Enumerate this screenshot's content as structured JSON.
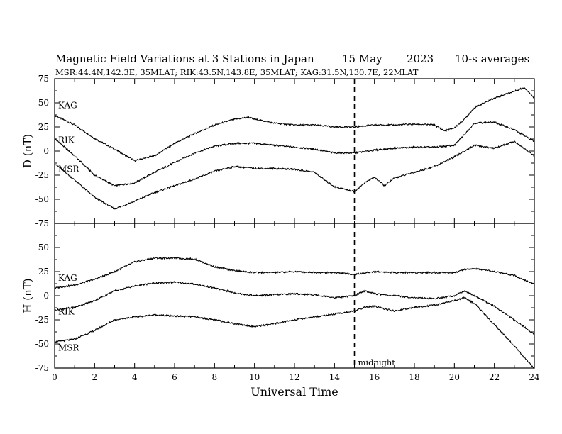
{
  "header": {
    "title": "Magnetic Field Variations at 3 Stations in Japan",
    "date": "15 May",
    "year": "2023",
    "averaging": "10-s averages",
    "stations_line": "MSR:44.4N,142.3E, 35MLAT;  RIK:43.5N,143.8E, 35MLAT;  KAG:31.5N,130.7E, 22MLAT"
  },
  "chart_data": [
    {
      "type": "line",
      "panel": "top",
      "ylabel": "D (nT)",
      "ylim": [
        -75,
        75
      ],
      "yticks": [
        "75",
        "50",
        "25",
        "0",
        "-25",
        "-50",
        "-75"
      ],
      "xlim": [
        0,
        24
      ],
      "grid": false,
      "series": [
        {
          "name": "KAG",
          "x": [
            0,
            1,
            2,
            3,
            4,
            5,
            6,
            7,
            8,
            9,
            9.7,
            10,
            11,
            12,
            13,
            14,
            15,
            16,
            17,
            18,
            19,
            19.5,
            20,
            20.5,
            21,
            22,
            23,
            23.5,
            24
          ],
          "values": [
            37,
            27,
            13,
            2,
            -10,
            -5,
            8,
            18,
            27,
            33,
            35,
            33,
            29,
            27,
            27,
            25,
            25,
            27,
            27,
            28,
            27,
            21,
            24,
            33,
            45,
            55,
            62,
            66,
            55
          ]
        },
        {
          "name": "RIK",
          "x": [
            0,
            1,
            2,
            3,
            4,
            5,
            6,
            7,
            8,
            9,
            10,
            11,
            12,
            13,
            14,
            15,
            16,
            17,
            18,
            19,
            20,
            20.5,
            21,
            22,
            23,
            24
          ],
          "values": [
            13,
            -5,
            -25,
            -36,
            -33,
            -22,
            -12,
            -2,
            5,
            8,
            8,
            6,
            4,
            2,
            -2,
            -2,
            1,
            3,
            4,
            4,
            6,
            17,
            29,
            30,
            22,
            10
          ]
        },
        {
          "name": "MSR",
          "x": [
            0,
            1,
            2,
            3,
            4,
            5,
            6,
            7,
            8,
            9,
            10,
            11,
            12,
            13,
            13.5,
            14,
            15,
            15.5,
            16,
            16.5,
            17,
            18,
            19,
            20,
            20.5,
            21,
            22,
            23,
            24
          ],
          "values": [
            -13,
            -30,
            -48,
            -60,
            -52,
            -43,
            -36,
            -29,
            -21,
            -16,
            -18,
            -18,
            -19,
            -22,
            -30,
            -37,
            -42,
            -33,
            -27,
            -36,
            -28,
            -22,
            -16,
            -6,
            0,
            6,
            3,
            10,
            -5
          ]
        }
      ],
      "annotations": [
        {
          "text": "midnight",
          "x": 15
        }
      ]
    },
    {
      "type": "line",
      "panel": "bottom",
      "ylabel": "H (nT)",
      "ylim": [
        -75,
        75
      ],
      "yticks": [
        "75",
        "50",
        "25",
        "0",
        "-25",
        "-50",
        "-75"
      ],
      "xlim": [
        0,
        24
      ],
      "xticks": [
        "0",
        "2",
        "4",
        "6",
        "8",
        "10",
        "12",
        "14",
        "16",
        "18",
        "20",
        "22",
        "24"
      ],
      "xlabel": "Universal Time",
      "grid": false,
      "series": [
        {
          "name": "KAG",
          "x": [
            0,
            1,
            2,
            3,
            4,
            5,
            6,
            7,
            8,
            9,
            10,
            11,
            12,
            13,
            14,
            15,
            16,
            17,
            18,
            19,
            20,
            20.5,
            21,
            22,
            23,
            24
          ],
          "values": [
            8,
            11,
            17,
            25,
            35,
            39,
            39,
            38,
            30,
            26,
            24,
            24,
            25,
            24,
            24,
            22,
            25,
            24,
            24,
            24,
            24,
            27,
            28,
            25,
            21,
            12
          ]
        },
        {
          "name": "RIK",
          "x": [
            0,
            1,
            2,
            3,
            4,
            5,
            6,
            7,
            8,
            9,
            10,
            11,
            12,
            13,
            14,
            15,
            15.5,
            16,
            17,
            18,
            19,
            20,
            20.5,
            21,
            22,
            23,
            24
          ],
          "values": [
            -15,
            -12,
            -5,
            5,
            10,
            13,
            14,
            12,
            8,
            3,
            0,
            1,
            2,
            1,
            -2,
            0,
            5,
            2,
            0,
            -2,
            -3,
            0,
            5,
            0,
            -11,
            -25,
            -40
          ]
        },
        {
          "name": "MSR",
          "x": [
            0,
            1,
            2,
            3,
            4,
            5,
            6,
            7,
            8,
            9,
            10,
            11,
            12,
            13,
            14,
            15,
            15.5,
            16,
            17,
            18,
            19,
            20,
            20.5,
            21,
            22,
            23,
            24
          ],
          "values": [
            -48,
            -45,
            -36,
            -25,
            -22,
            -20,
            -21,
            -22,
            -25,
            -29,
            -32,
            -29,
            -25,
            -22,
            -19,
            -16,
            -12,
            -11,
            -16,
            -12,
            -10,
            -5,
            -2,
            -8,
            -30,
            -52,
            -76
          ]
        }
      ]
    }
  ]
}
